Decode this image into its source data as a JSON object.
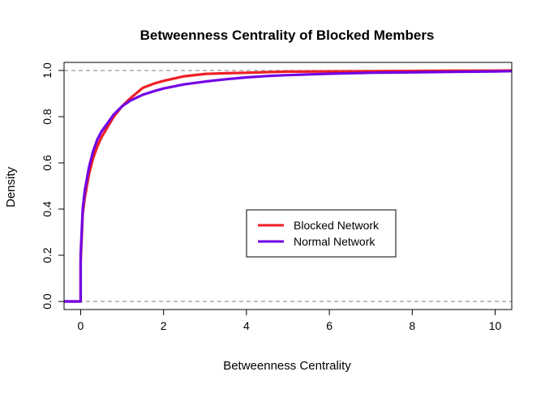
{
  "chart_data": {
    "type": "line",
    "title": "Betweenness Centrality of Blocked Members",
    "xlabel": "Betweenness Centrality",
    "ylabel": "Density",
    "xlim": [
      -0.4,
      10.4
    ],
    "ylim": [
      -0.035,
      1.035
    ],
    "x_ticks": [
      0,
      2,
      4,
      6,
      8,
      10
    ],
    "y_ticks": [
      0.0,
      0.2,
      0.4,
      0.6,
      0.8,
      1.0
    ],
    "x_tick_labels": [
      "0",
      "2",
      "4",
      "6",
      "8",
      "10"
    ],
    "y_tick_labels": [
      "0.0",
      "0.2",
      "0.4",
      "0.6",
      "0.8",
      "1.0"
    ],
    "reference_lines": [
      0,
      1
    ],
    "reference_line_color": "#a8a8a8",
    "legend_position": "center-right",
    "series": [
      {
        "name": "Blocked Network",
        "color": "#ee1f25",
        "x": [
          -0.4,
          0,
          0,
          0.05,
          0.1,
          0.2,
          0.3,
          0.4,
          0.5,
          0.6,
          0.8,
          1.0,
          1.2,
          1.5,
          1.8,
          2.0,
          2.5,
          3.0,
          3.5,
          4.0,
          4.5,
          5.0,
          6.0,
          7.0,
          8.0,
          9.0,
          10.0,
          10.4
        ],
        "y": [
          0,
          0,
          0.17,
          0.38,
          0.45,
          0.55,
          0.62,
          0.67,
          0.71,
          0.74,
          0.8,
          0.845,
          0.88,
          0.925,
          0.945,
          0.955,
          0.975,
          0.985,
          0.988,
          0.99,
          0.993,
          0.995,
          0.996,
          0.997,
          0.998,
          0.999,
          0.999,
          1.0
        ]
      },
      {
        "name": "Normal Network",
        "color": "#7200e5",
        "x": [
          -0.4,
          0,
          0,
          0.05,
          0.1,
          0.2,
          0.3,
          0.4,
          0.5,
          0.6,
          0.8,
          1.0,
          1.2,
          1.5,
          1.8,
          2.0,
          2.5,
          3.0,
          3.5,
          4.0,
          4.5,
          5.0,
          6.0,
          7.0,
          8.0,
          9.0,
          10.0,
          10.4
        ],
        "y": [
          0,
          0,
          0.2,
          0.4,
          0.48,
          0.58,
          0.65,
          0.7,
          0.735,
          0.76,
          0.81,
          0.845,
          0.87,
          0.895,
          0.912,
          0.922,
          0.94,
          0.952,
          0.962,
          0.97,
          0.976,
          0.98,
          0.986,
          0.99,
          0.992,
          0.994,
          0.996,
          0.997
        ]
      }
    ]
  }
}
